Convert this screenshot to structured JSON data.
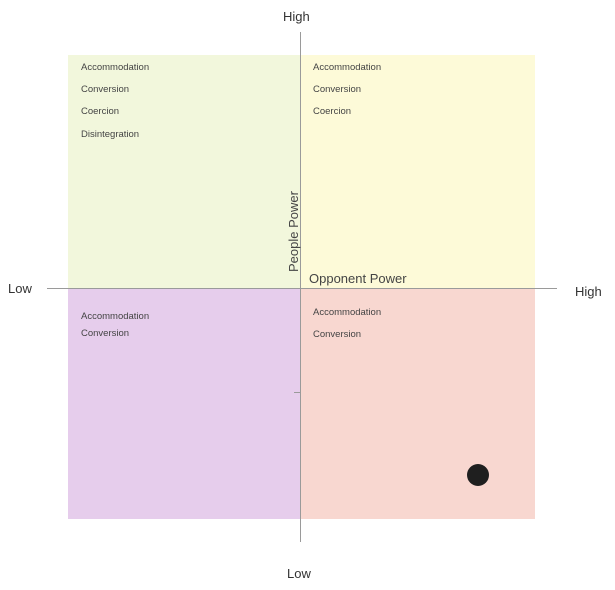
{
  "axes": {
    "vertical": {
      "title": "People Power",
      "high": "High",
      "low": "Low"
    },
    "horizontal": {
      "title": "Opponent Power",
      "high": "High",
      "low": "Low"
    }
  },
  "quadrants": {
    "top_left": {
      "color": "#f2f7dc",
      "items": [
        "Accommodation",
        "Conversion",
        "Coercion",
        "Disintegration"
      ]
    },
    "top_right": {
      "color": "#fdfad8",
      "items": [
        "Accommodation",
        "Conversion",
        "Coercion"
      ]
    },
    "bottom_left": {
      "color": "#e6cdec",
      "items": [
        "Accommodation",
        "Conversion"
      ]
    },
    "bottom_right": {
      "color": "#f8d7d0",
      "items": [
        "Accommodation",
        "Conversion"
      ]
    }
  },
  "marker": {
    "color": "#1f1f1f"
  }
}
